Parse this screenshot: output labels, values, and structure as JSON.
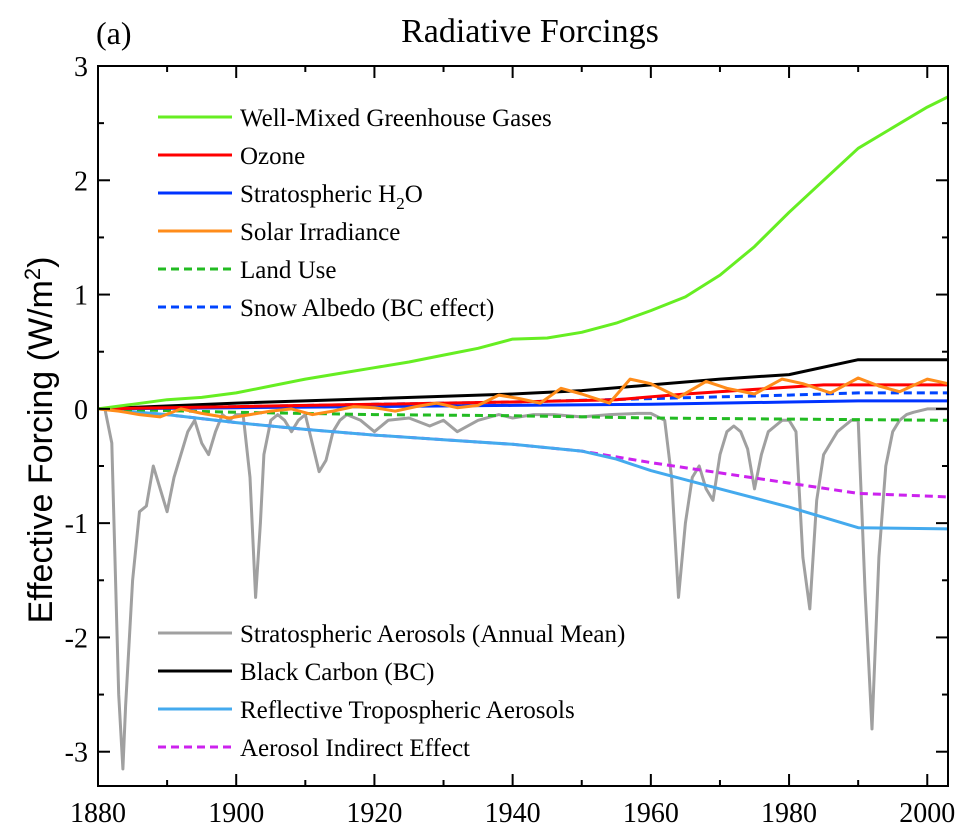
{
  "chart_data": {
    "type": "line",
    "panel_label": "(a)",
    "title": "Radiative Forcings",
    "xlabel": "",
    "ylabel": "Effective Forcing (W/m²)",
    "xlim": [
      1880,
      2003
    ],
    "ylim": [
      -3.3,
      3
    ],
    "x_ticks": [
      1880,
      1900,
      1920,
      1940,
      1960,
      1980,
      2000
    ],
    "y_ticks": [
      -3,
      -2,
      -1,
      0,
      1,
      2,
      3
    ],
    "grid": false,
    "legend_placement": "top-left and bottom-left",
    "series": [
      {
        "name": "Well-Mixed Greenhouse Gases",
        "color": "#66ee22",
        "dash": "solid",
        "points": [
          [
            1880,
            0
          ],
          [
            1885,
            0.04
          ],
          [
            1890,
            0.08
          ],
          [
            1895,
            0.1
          ],
          [
            1900,
            0.14
          ],
          [
            1905,
            0.2
          ],
          [
            1910,
            0.26
          ],
          [
            1915,
            0.31
          ],
          [
            1920,
            0.36
          ],
          [
            1925,
            0.41
          ],
          [
            1930,
            0.47
          ],
          [
            1935,
            0.53
          ],
          [
            1940,
            0.61
          ],
          [
            1945,
            0.62
          ],
          [
            1950,
            0.67
          ],
          [
            1955,
            0.75
          ],
          [
            1960,
            0.86
          ],
          [
            1965,
            0.98
          ],
          [
            1970,
            1.17
          ],
          [
            1975,
            1.42
          ],
          [
            1980,
            1.72
          ],
          [
            1985,
            2.0
          ],
          [
            1990,
            2.28
          ],
          [
            1995,
            2.46
          ],
          [
            2000,
            2.64
          ],
          [
            2003,
            2.73
          ]
        ]
      },
      {
        "name": "Ozone",
        "color": "#ff0000",
        "dash": "solid",
        "points": [
          [
            1880,
            0
          ],
          [
            1900,
            0.02
          ],
          [
            1920,
            0.04
          ],
          [
            1940,
            0.06
          ],
          [
            1955,
            0.08
          ],
          [
            1965,
            0.13
          ],
          [
            1975,
            0.17
          ],
          [
            1985,
            0.21
          ],
          [
            1990,
            0.21
          ],
          [
            2003,
            0.21
          ]
        ]
      },
      {
        "name": "Stratospheric H₂O",
        "color": "#0033ff",
        "dash": "solid",
        "points": [
          [
            1880,
            0
          ],
          [
            1900,
            0.01
          ],
          [
            1920,
            0.02
          ],
          [
            1940,
            0.03
          ],
          [
            1960,
            0.04
          ],
          [
            1980,
            0.06
          ],
          [
            1990,
            0.07
          ],
          [
            2003,
            0.07
          ]
        ]
      },
      {
        "name": "Solar Irradiance",
        "color": "#ff8c1a",
        "dash": "solid",
        "points": [
          [
            1880,
            0
          ],
          [
            1883,
            -0.02
          ],
          [
            1886,
            -0.05
          ],
          [
            1889,
            -0.07
          ],
          [
            1892,
            0.0
          ],
          [
            1895,
            -0.04
          ],
          [
            1899,
            -0.08
          ],
          [
            1902,
            -0.05
          ],
          [
            1905,
            -0.02
          ],
          [
            1908,
            0.0
          ],
          [
            1911,
            -0.05
          ],
          [
            1914,
            -0.02
          ],
          [
            1917,
            0.02
          ],
          [
            1920,
            0.01
          ],
          [
            1923,
            -0.02
          ],
          [
            1926,
            0.02
          ],
          [
            1929,
            0.05
          ],
          [
            1932,
            0.01
          ],
          [
            1935,
            0.03
          ],
          [
            1938,
            0.12
          ],
          [
            1941,
            0.09
          ],
          [
            1944,
            0.05
          ],
          [
            1947,
            0.18
          ],
          [
            1950,
            0.13
          ],
          [
            1954,
            0.05
          ],
          [
            1957,
            0.26
          ],
          [
            1960,
            0.22
          ],
          [
            1964,
            0.1
          ],
          [
            1968,
            0.24
          ],
          [
            1971,
            0.18
          ],
          [
            1975,
            0.13
          ],
          [
            1979,
            0.26
          ],
          [
            1982,
            0.22
          ],
          [
            1986,
            0.14
          ],
          [
            1990,
            0.27
          ],
          [
            1993,
            0.2
          ],
          [
            1996,
            0.15
          ],
          [
            2000,
            0.26
          ],
          [
            2003,
            0.22
          ]
        ]
      },
      {
        "name": "Land Use",
        "color": "#22bb22",
        "dash": "dashed",
        "points": [
          [
            1880,
            0
          ],
          [
            1900,
            -0.03
          ],
          [
            1920,
            -0.05
          ],
          [
            1940,
            -0.06
          ],
          [
            1960,
            -0.08
          ],
          [
            1980,
            -0.09
          ],
          [
            2003,
            -0.1
          ]
        ]
      },
      {
        "name": "Snow Albedo (BC effect)",
        "color": "#0044ff",
        "dash": "dashed",
        "points": [
          [
            1880,
            0
          ],
          [
            1900,
            0.02
          ],
          [
            1920,
            0.04
          ],
          [
            1940,
            0.06
          ],
          [
            1960,
            0.09
          ],
          [
            1980,
            0.12
          ],
          [
            1990,
            0.14
          ],
          [
            2003,
            0.14
          ]
        ]
      },
      {
        "name": "Stratospheric Aerosols (Annual Mean)",
        "color": "#a0a0a0",
        "dash": "solid",
        "points": [
          [
            1880,
            0
          ],
          [
            1881,
            0
          ],
          [
            1882,
            -0.3
          ],
          [
            1883,
            -2.5
          ],
          [
            1883.6,
            -3.15
          ],
          [
            1884,
            -2.6
          ],
          [
            1885,
            -1.5
          ],
          [
            1886,
            -0.9
          ],
          [
            1887,
            -0.85
          ],
          [
            1888,
            -0.5
          ],
          [
            1889,
            -0.7
          ],
          [
            1890,
            -0.9
          ],
          [
            1891,
            -0.6
          ],
          [
            1892,
            -0.4
          ],
          [
            1893,
            -0.2
          ],
          [
            1894,
            -0.1
          ],
          [
            1895,
            -0.3
          ],
          [
            1896,
            -0.4
          ],
          [
            1897,
            -0.2
          ],
          [
            1898,
            -0.05
          ],
          [
            1899,
            -0.1
          ],
          [
            1900,
            -0.05
          ],
          [
            1901,
            -0.05
          ],
          [
            1902,
            -0.6
          ],
          [
            1902.8,
            -1.65
          ],
          [
            1903.5,
            -1.0
          ],
          [
            1904,
            -0.4
          ],
          [
            1905,
            -0.1
          ],
          [
            1906,
            -0.05
          ],
          [
            1907,
            -0.1
          ],
          [
            1908,
            -0.2
          ],
          [
            1909,
            -0.1
          ],
          [
            1910,
            -0.05
          ],
          [
            1911,
            -0.3
          ],
          [
            1912,
            -0.55
          ],
          [
            1913,
            -0.45
          ],
          [
            1914,
            -0.2
          ],
          [
            1915,
            -0.1
          ],
          [
            1916,
            -0.05
          ],
          [
            1918,
            -0.1
          ],
          [
            1920,
            -0.2
          ],
          [
            1922,
            -0.1
          ],
          [
            1925,
            -0.08
          ],
          [
            1928,
            -0.15
          ],
          [
            1930,
            -0.1
          ],
          [
            1932,
            -0.2
          ],
          [
            1935,
            -0.1
          ],
          [
            1938,
            -0.05
          ],
          [
            1940,
            -0.08
          ],
          [
            1943,
            -0.05
          ],
          [
            1946,
            -0.05
          ],
          [
            1950,
            -0.07
          ],
          [
            1954,
            -0.05
          ],
          [
            1958,
            -0.04
          ],
          [
            1960,
            -0.04
          ],
          [
            1962,
            -0.1
          ],
          [
            1963,
            -0.6
          ],
          [
            1964,
            -1.65
          ],
          [
            1965,
            -1.0
          ],
          [
            1966,
            -0.6
          ],
          [
            1967,
            -0.5
          ],
          [
            1968,
            -0.7
          ],
          [
            1969,
            -0.8
          ],
          [
            1970,
            -0.4
          ],
          [
            1971,
            -0.2
          ],
          [
            1972,
            -0.15
          ],
          [
            1973,
            -0.2
          ],
          [
            1974,
            -0.35
          ],
          [
            1975,
            -0.7
          ],
          [
            1976,
            -0.4
          ],
          [
            1977,
            -0.2
          ],
          [
            1978,
            -0.15
          ],
          [
            1979,
            -0.1
          ],
          [
            1980,
            -0.1
          ],
          [
            1981,
            -0.2
          ],
          [
            1982,
            -1.3
          ],
          [
            1983,
            -1.75
          ],
          [
            1984,
            -0.8
          ],
          [
            1985,
            -0.4
          ],
          [
            1986,
            -0.3
          ],
          [
            1987,
            -0.2
          ],
          [
            1988,
            -0.15
          ],
          [
            1989,
            -0.1
          ],
          [
            1990,
            -0.1
          ],
          [
            1991,
            -1.6
          ],
          [
            1992,
            -2.8
          ],
          [
            1993,
            -1.3
          ],
          [
            1994,
            -0.5
          ],
          [
            1995,
            -0.2
          ],
          [
            1996,
            -0.1
          ],
          [
            1997,
            -0.05
          ],
          [
            1998,
            -0.03
          ],
          [
            2000,
            0
          ],
          [
            2003,
            0
          ]
        ]
      },
      {
        "name": "Black Carbon (BC)",
        "color": "#000000",
        "dash": "solid",
        "points": [
          [
            1880,
            0
          ],
          [
            1900,
            0.05
          ],
          [
            1920,
            0.09
          ],
          [
            1940,
            0.13
          ],
          [
            1950,
            0.16
          ],
          [
            1960,
            0.21
          ],
          [
            1970,
            0.26
          ],
          [
            1980,
            0.3
          ],
          [
            1990,
            0.43
          ],
          [
            2003,
            0.43
          ]
        ]
      },
      {
        "name": "Reflective Tropospheric Aerosols",
        "color": "#44aaee",
        "dash": "solid",
        "points": [
          [
            1880,
            0
          ],
          [
            1890,
            -0.05
          ],
          [
            1900,
            -0.12
          ],
          [
            1910,
            -0.18
          ],
          [
            1920,
            -0.23
          ],
          [
            1930,
            -0.27
          ],
          [
            1940,
            -0.31
          ],
          [
            1950,
            -0.37
          ],
          [
            1955,
            -0.44
          ],
          [
            1960,
            -0.54
          ],
          [
            1970,
            -0.7
          ],
          [
            1980,
            -0.86
          ],
          [
            1990,
            -1.04
          ],
          [
            2003,
            -1.05
          ]
        ]
      },
      {
        "name": "Aerosol Indirect Effect",
        "color": "#cc22ee",
        "dash": "dashed",
        "points": [
          [
            1880,
            0
          ],
          [
            1890,
            -0.05
          ],
          [
            1900,
            -0.12
          ],
          [
            1910,
            -0.18
          ],
          [
            1920,
            -0.23
          ],
          [
            1930,
            -0.27
          ],
          [
            1940,
            -0.31
          ],
          [
            1950,
            -0.37
          ],
          [
            1960,
            -0.47
          ],
          [
            1970,
            -0.56
          ],
          [
            1980,
            -0.65
          ],
          [
            1990,
            -0.74
          ],
          [
            2003,
            -0.77
          ]
        ]
      }
    ]
  }
}
